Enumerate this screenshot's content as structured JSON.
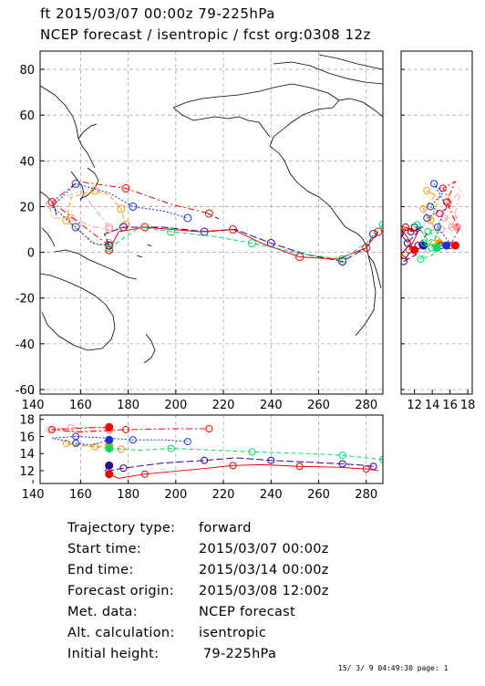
{
  "header": {
    "line1": "ft 2015/03/07 00:00z   79-225hPa",
    "line2": "NCEP forecast / isentropic / fcst org:0308 12z"
  },
  "map": {
    "lon_ticks": [
      "140",
      "160",
      "180",
      "200",
      "220",
      "240",
      "260",
      "280"
    ],
    "lat_ticks": [
      "80",
      "60",
      "40",
      "20",
      "0",
      "-20",
      "-40",
      "-60"
    ],
    "lon_range": [
      143,
      287
    ],
    "lat_range": [
      -62,
      88
    ],
    "grid": true
  },
  "side_panel": {
    "x_ticks": [
      "12",
      "14",
      "16",
      "18"
    ]
  },
  "bottom_panel": {
    "y_ticks": [
      "18",
      "16",
      "14",
      "12"
    ],
    "x_ticks": [
      "140",
      "160",
      "180",
      "200",
      "220",
      "240",
      "260",
      "280"
    ]
  },
  "colors": {
    "red": "#ff0000",
    "pink": "#ff9999",
    "orange": "#ff9900",
    "blue": "#1133dd",
    "purple": "#330099",
    "green": "#00dd66",
    "grid": "#999999",
    "coast": "#000000"
  },
  "chart_data": {
    "type": "trajectory",
    "series": [
      {
        "color": "pink",
        "style": "dashdot",
        "points": [
          [
            172,
            11
          ],
          [
            160,
            27
          ],
          [
            147,
            21
          ],
          [
            148,
            15
          ],
          [
            156,
            15
          ],
          [
            166,
            11
          ],
          [
            172,
            10
          ]
        ]
      },
      {
        "color": "red",
        "style": "dashdot",
        "points": [
          [
            172,
            3
          ],
          [
            163,
            10
          ],
          [
            148,
            22
          ],
          [
            159,
            31
          ],
          [
            179,
            28
          ],
          [
            198,
            21
          ],
          [
            214,
            17
          ]
        ]
      },
      {
        "color": "orange",
        "style": "dashed",
        "points": [
          [
            172,
            4
          ],
          [
            167,
            3
          ],
          [
            154,
            14
          ],
          [
            156,
            24
          ],
          [
            166,
            27
          ],
          [
            172,
            25
          ],
          [
            177,
            19
          ],
          [
            179,
            12
          ]
        ]
      },
      {
        "color": "blue",
        "style": "dotted",
        "points": [
          [
            172,
            3
          ],
          [
            165,
            4
          ],
          [
            158,
            11
          ],
          [
            148,
            20
          ],
          [
            158,
            30
          ],
          [
            172,
            26
          ],
          [
            182,
            20
          ],
          [
            195,
            18
          ],
          [
            205,
            15
          ]
        ]
      },
      {
        "color": "purple",
        "style": "longdash",
        "points": [
          [
            172,
            3
          ],
          [
            170,
            8
          ],
          [
            178,
            11
          ],
          [
            195,
            11
          ],
          [
            212,
            9
          ],
          [
            225,
            10
          ],
          [
            240,
            4
          ],
          [
            255,
            -1
          ],
          [
            270,
            -4
          ],
          [
            280,
            2
          ],
          [
            283,
            8
          ]
        ]
      },
      {
        "color": "red2",
        "style": "solid",
        "points": [
          [
            172,
            1
          ],
          [
            176,
            9
          ],
          [
            187,
            11
          ],
          [
            210,
            9
          ],
          [
            224,
            10
          ],
          [
            236,
            4
          ],
          [
            252,
            -2
          ],
          [
            268,
            -3
          ],
          [
            280,
            2
          ],
          [
            285,
            9
          ]
        ]
      },
      {
        "color": "green",
        "style": "dashed",
        "points": [
          [
            172,
            2
          ],
          [
            185,
            11
          ],
          [
            198,
            9
          ],
          [
            216,
            7
          ],
          [
            232,
            4
          ],
          [
            255,
            -1
          ],
          [
            270,
            -3
          ],
          [
            280,
            4
          ],
          [
            287,
            12
          ]
        ]
      }
    ]
  },
  "info": {
    "rows": [
      {
        "label": "Trajectory type:",
        "value": "forward"
      },
      {
        "label": "Start time:",
        "value": "2015/03/07 00:00z"
      },
      {
        "label": "End time:",
        "value": "2015/03/14 00:00z"
      },
      {
        "label": "Forecast origin:",
        "value": "2015/03/08 12:00z"
      },
      {
        "label": "Met. data:",
        "value": "NCEP forecast"
      },
      {
        "label": "Alt. calculation:",
        "value": "isentropic"
      },
      {
        "label": "Initial height:",
        "value": " 79-225hPa"
      }
    ]
  },
  "footer": "15/ 3/ 9 04:49:30 page: 1"
}
